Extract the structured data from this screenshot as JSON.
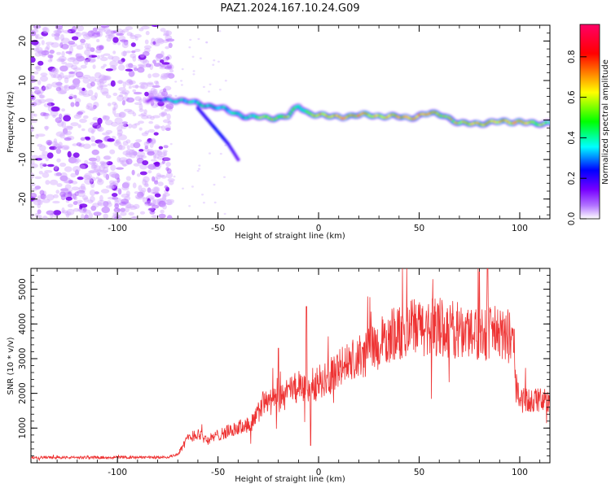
{
  "title": "PAZ1.2024.167.10.24.G09",
  "chart_data": [
    {
      "type": "heatmap",
      "xlabel": "Height of straight line (km)",
      "ylabel": "Frequency (Hz)",
      "xlim": [
        -143,
        115
      ],
      "ylim": [
        -25,
        24
      ],
      "xticks": [
        -100,
        -50,
        0,
        50,
        100
      ],
      "yticks": [
        -20,
        -10,
        0,
        10,
        20
      ],
      "colorbar": {
        "label": "Normalized spectral amplitude",
        "range": [
          0.0,
          0.96
        ],
        "ticks": [
          0.0,
          0.2,
          0.4,
          0.6,
          0.8
        ],
        "colormap": [
          "#ffffff",
          "#9a00ff",
          "#0000ff",
          "#00ffff",
          "#00ff00",
          "#ffff00",
          "#ff0000",
          "#ff0066"
        ]
      },
      "ridge": [
        {
          "x": -85,
          "f": 5.0,
          "a": 0.15
        },
        {
          "x": -72,
          "f": 5.2,
          "a": 0.5
        },
        {
          "x": -65,
          "f": 4.6,
          "a": 0.45
        },
        {
          "x": -58,
          "f": 4.0,
          "a": 0.5
        },
        {
          "x": -50,
          "f": 3.2,
          "a": 0.45
        },
        {
          "x": -42,
          "f": 1.8,
          "a": 0.5
        },
        {
          "x": -35,
          "f": 0.8,
          "a": 0.5
        },
        {
          "x": -25,
          "f": 0.5,
          "a": 0.7
        },
        {
          "x": -15,
          "f": 1.0,
          "a": 0.75
        },
        {
          "x": -10,
          "f": 3.5,
          "a": 0.55
        },
        {
          "x": -5,
          "f": 1.8,
          "a": 0.7
        },
        {
          "x": 5,
          "f": 0.8,
          "a": 0.8
        },
        {
          "x": 15,
          "f": 1.0,
          "a": 0.85
        },
        {
          "x": 25,
          "f": 1.3,
          "a": 0.8
        },
        {
          "x": 35,
          "f": 0.9,
          "a": 0.8
        },
        {
          "x": 45,
          "f": 0.6,
          "a": 0.8
        },
        {
          "x": 55,
          "f": 1.6,
          "a": 0.85
        },
        {
          "x": 62,
          "f": 1.4,
          "a": 0.7
        },
        {
          "x": 70,
          "f": -1.0,
          "a": 0.75
        },
        {
          "x": 80,
          "f": -0.8,
          "a": 0.8
        },
        {
          "x": 90,
          "f": -0.5,
          "a": 0.8
        },
        {
          "x": 100,
          "f": -0.3,
          "a": 0.85
        },
        {
          "x": 108,
          "f": -1.2,
          "a": 0.7
        },
        {
          "x": 115,
          "f": -0.5,
          "a": 0.6
        }
      ],
      "side_branch": [
        {
          "x": -60,
          "f": 3.0,
          "a": 0.25
        },
        {
          "x": -55,
          "f": 0.0,
          "a": 0.25
        },
        {
          "x": -50,
          "f": -3.0,
          "a": 0.3
        },
        {
          "x": -45,
          "f": -6.0,
          "a": 0.25
        },
        {
          "x": -40,
          "f": -10.0,
          "a": 0.2
        }
      ],
      "noise_region": {
        "x": [
          -143,
          -73
        ],
        "f": [
          -25,
          24
        ],
        "a": 0.12
      }
    },
    {
      "type": "line",
      "xlabel": "Height of straight line (km)",
      "ylabel": "SNR (10 * v/v)",
      "xlim": [
        -143,
        115
      ],
      "ylim": [
        0,
        5600
      ],
      "xticks": [
        -100,
        -50,
        0,
        50,
        100
      ],
      "yticks": [
        1000,
        2000,
        3000,
        4000,
        5000
      ],
      "color": "#ee3333",
      "trend": [
        {
          "x": -143,
          "y": 150
        },
        {
          "x": -75,
          "y": 160
        },
        {
          "x": -70,
          "y": 250
        },
        {
          "x": -65,
          "y": 700
        },
        {
          "x": -60,
          "y": 850
        },
        {
          "x": -55,
          "y": 650
        },
        {
          "x": -50,
          "y": 800
        },
        {
          "x": -40,
          "y": 1000
        },
        {
          "x": -32,
          "y": 1200
        },
        {
          "x": -28,
          "y": 1700
        },
        {
          "x": -20,
          "y": 1800
        },
        {
          "x": -15,
          "y": 2000
        },
        {
          "x": -10,
          "y": 2200
        },
        {
          "x": -5,
          "y": 2200
        },
        {
          "x": 0,
          "y": 2300
        },
        {
          "x": 10,
          "y": 2700
        },
        {
          "x": 20,
          "y": 3000
        },
        {
          "x": 30,
          "y": 3400
        },
        {
          "x": 40,
          "y": 3800
        },
        {
          "x": 50,
          "y": 3900
        },
        {
          "x": 60,
          "y": 3900
        },
        {
          "x": 70,
          "y": 3800
        },
        {
          "x": 80,
          "y": 3800
        },
        {
          "x": 90,
          "y": 3700
        },
        {
          "x": 97,
          "y": 3600
        },
        {
          "x": 98,
          "y": 2200
        },
        {
          "x": 100,
          "y": 1800
        },
        {
          "x": 110,
          "y": 1800
        },
        {
          "x": 115,
          "y": 1800
        }
      ],
      "peaks": [
        {
          "x": -20,
          "y": 3300
        },
        {
          "x": -6,
          "y": 4500
        },
        {
          "x": -4,
          "y": 500
        },
        {
          "x": 80,
          "y": 5500
        },
        {
          "x": 84,
          "y": 5600
        }
      ]
    }
  ]
}
